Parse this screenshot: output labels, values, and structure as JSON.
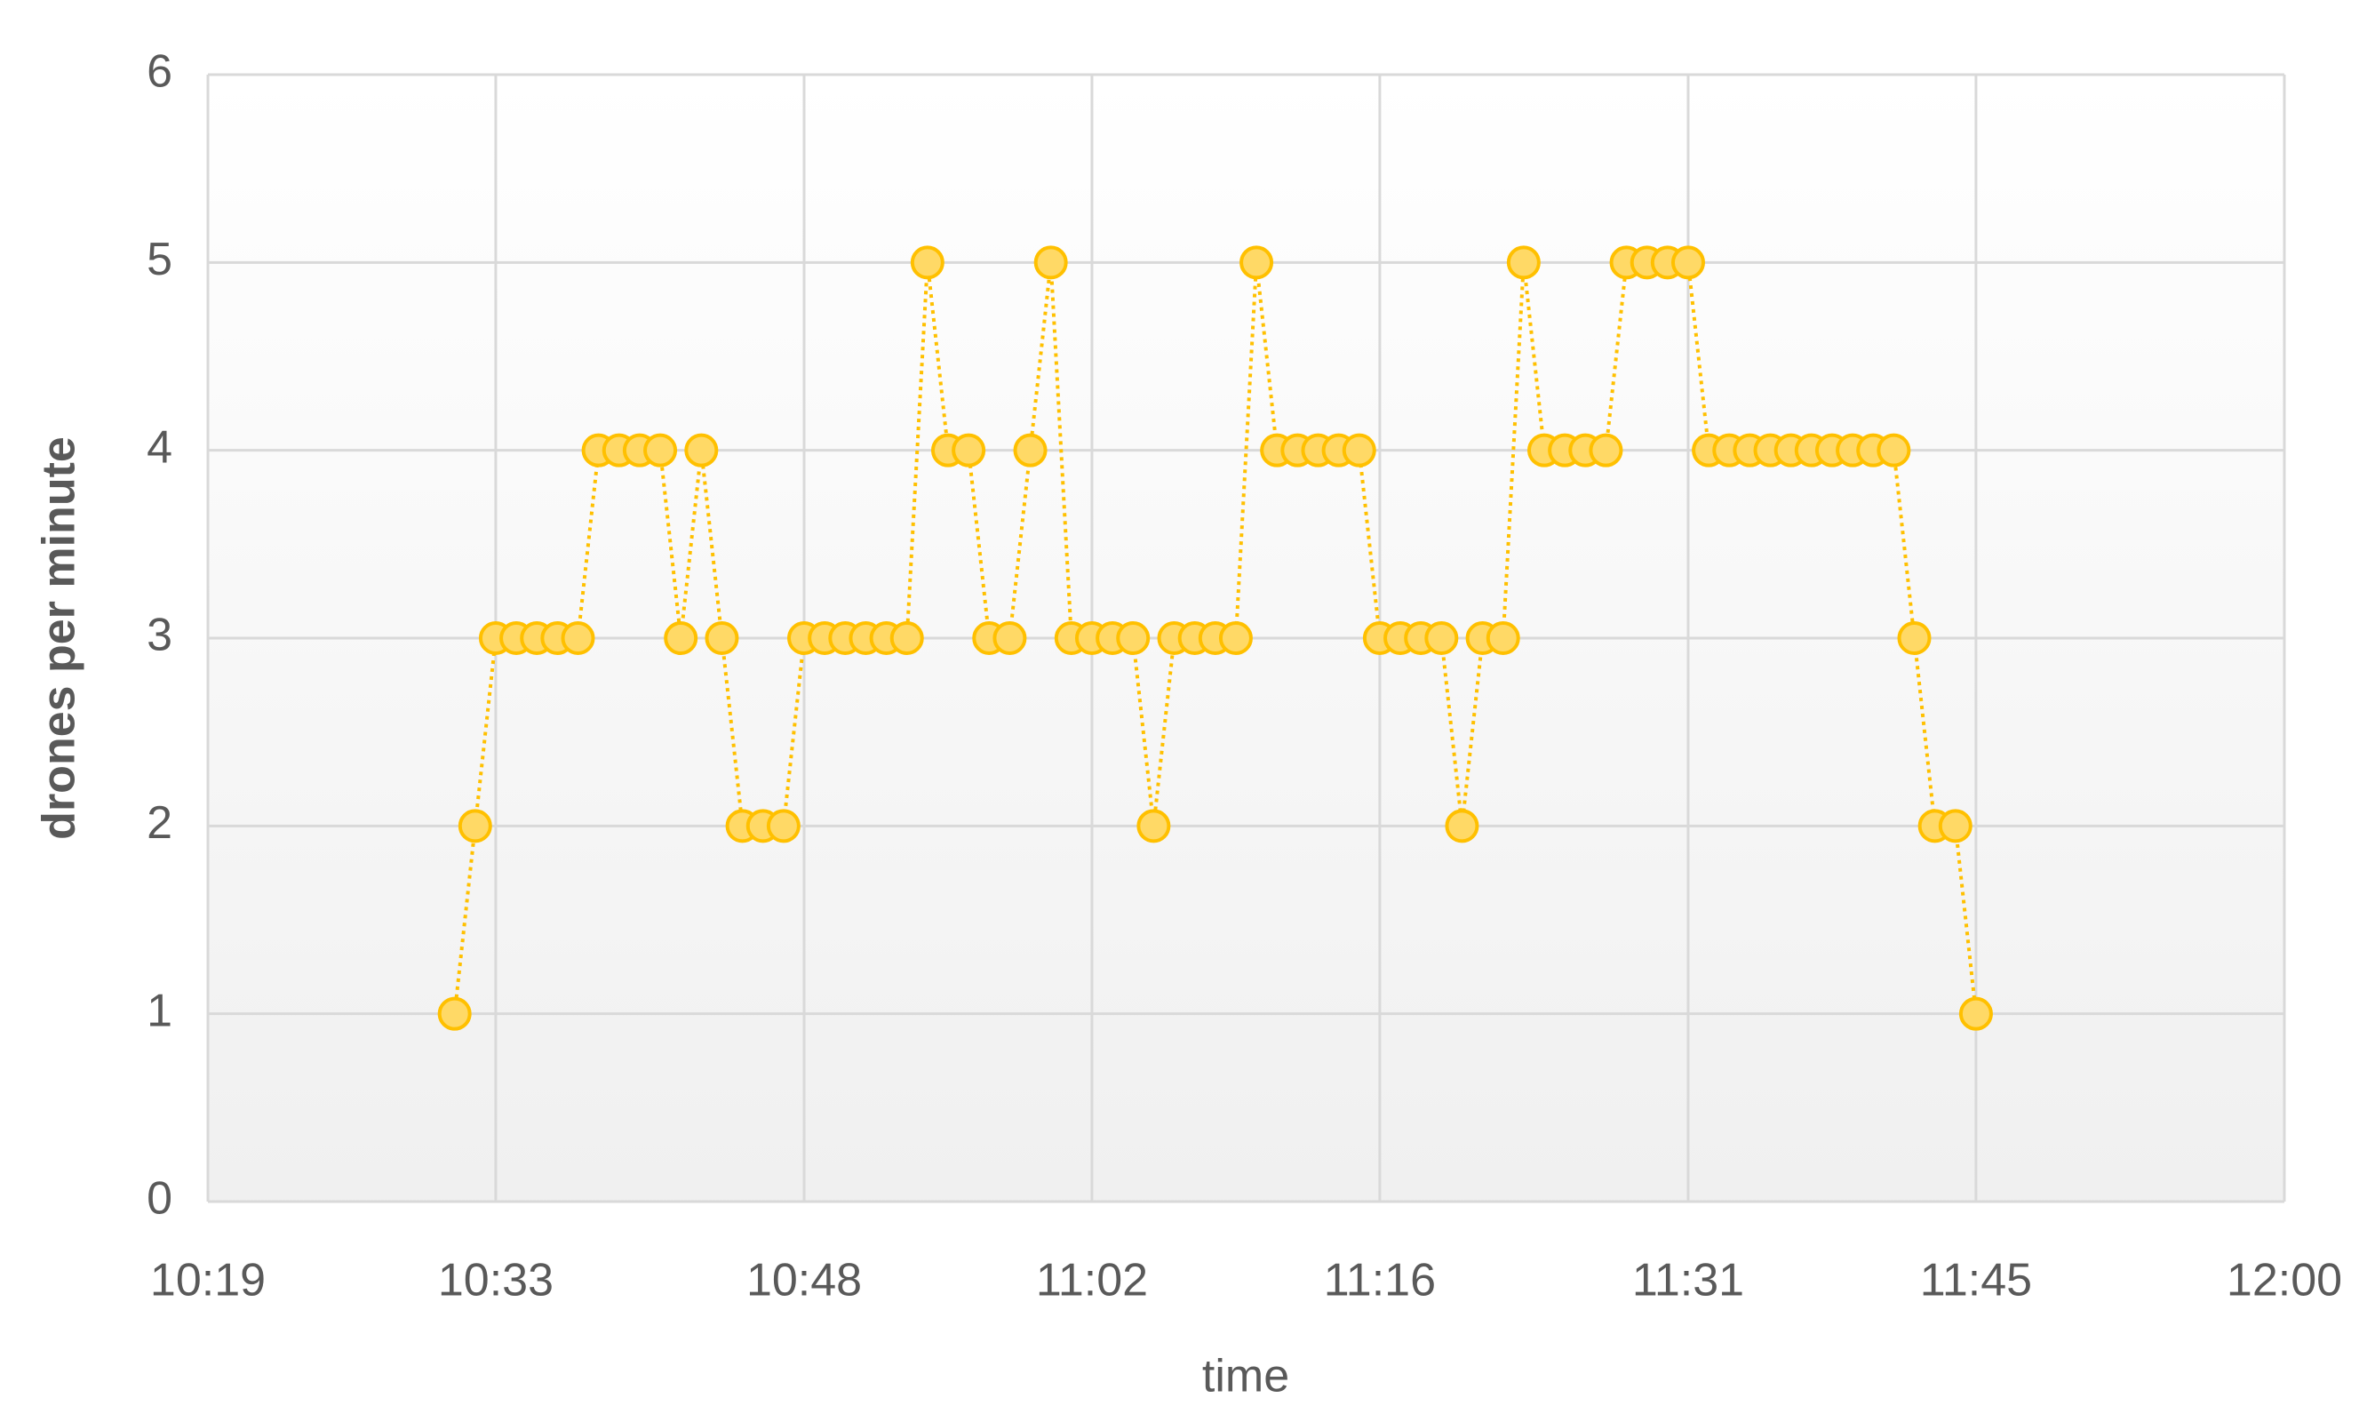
{
  "chart_data": {
    "type": "line",
    "x_label": "time",
    "y_label": "drones per minute",
    "x": [
      "10:31",
      "10:32",
      "10:33",
      "10:34",
      "10:35",
      "10:36",
      "10:37",
      "10:38",
      "10:39",
      "10:40",
      "10:41",
      "10:42",
      "10:43",
      "10:44",
      "10:45",
      "10:46",
      "10:47",
      "10:48",
      "10:49",
      "10:50",
      "10:51",
      "10:52",
      "10:53",
      "10:54",
      "10:55",
      "10:56",
      "10:57",
      "10:58",
      "10:59",
      "11:00",
      "11:01",
      "11:02",
      "11:03",
      "11:04",
      "11:05",
      "11:06",
      "11:07",
      "11:08",
      "11:09",
      "11:10",
      "11:11",
      "11:12",
      "11:13",
      "11:14",
      "11:15",
      "11:16",
      "11:17",
      "11:18",
      "11:19",
      "11:20",
      "11:21",
      "11:22",
      "11:23",
      "11:24",
      "11:25",
      "11:26",
      "11:27",
      "11:28",
      "11:29",
      "11:30",
      "11:31",
      "11:32",
      "11:33",
      "11:34",
      "11:35",
      "11:36",
      "11:37",
      "11:38",
      "11:39",
      "11:40",
      "11:41",
      "11:42",
      "11:43",
      "11:44",
      "11:45"
    ],
    "series": [
      {
        "name": "drones per minute",
        "color": "#ffc000",
        "fill": "#ffd966",
        "values": [
          1,
          2,
          3,
          3,
          3,
          3,
          3,
          4,
          4,
          4,
          4,
          3,
          4,
          3,
          2,
          2,
          2,
          3,
          3,
          3,
          3,
          3,
          3,
          5,
          4,
          4,
          3,
          3,
          4,
          5,
          3,
          3,
          3,
          3,
          2,
          3,
          3,
          3,
          3,
          5,
          4,
          4,
          4,
          4,
          4,
          3,
          3,
          3,
          3,
          2,
          3,
          3,
          5,
          4,
          4,
          4,
          4,
          5,
          5,
          5,
          5,
          4,
          4,
          4,
          4,
          4,
          4,
          4,
          4,
          4,
          4,
          3,
          2,
          2,
          1
        ]
      }
    ],
    "xlim": [
      "10:19",
      "12:00"
    ],
    "xticks": [
      "10:19",
      "10:33",
      "10:48",
      "11:02",
      "11:16",
      "11:31",
      "11:45",
      "12:00"
    ],
    "ylim": [
      0,
      6
    ],
    "yticks": [
      0,
      1,
      2,
      3,
      4,
      5,
      6
    ],
    "grid": true
  }
}
